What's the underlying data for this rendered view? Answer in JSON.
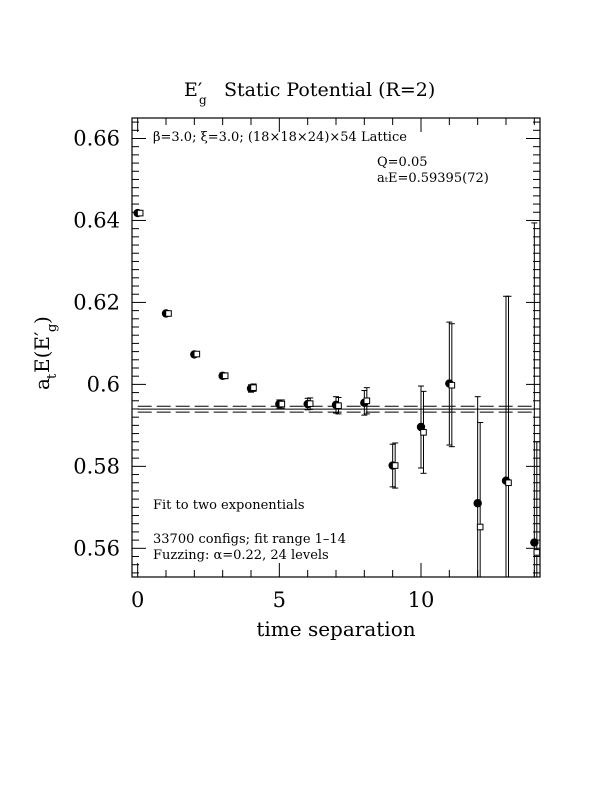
{
  "chart_data": {
    "type": "scatter",
    "title": "E′g  Static Potential (R=2)",
    "title_main": "E′",
    "title_sub": "g",
    "title_rest": "Static Potential (R=2)",
    "xlabel": "time separation",
    "ylabel": "aₜE(E′g)",
    "ylabel_parts": {
      "a": "a",
      "t": "t",
      "E": "E(E′",
      "g": "g",
      "close": ")"
    },
    "xlim": [
      -0.2,
      14.2
    ],
    "ylim": [
      0.553,
      0.665
    ],
    "x_ticks": [
      0,
      5,
      10
    ],
    "x_tick_labels": [
      "0",
      "5",
      "10"
    ],
    "y_ticks": [
      0.56,
      0.58,
      0.6,
      0.62,
      0.64,
      0.66
    ],
    "y_tick_labels": [
      "0.56",
      "0.58",
      "0.6",
      "0.62",
      "0.64",
      "0.66"
    ],
    "annotations": {
      "lattice": "β=3.0; ξ=3.0; (18×18×24)×54 Lattice",
      "q": "Q=0.05",
      "energy": "aₜE=0.59395(72)",
      "fit": "Fit to two exponentials",
      "configs": "33700 configs; fit range 1–14",
      "fuzzing": "Fuzzing: α=0.22, 24 levels"
    },
    "fit": {
      "value": 0.59395,
      "error": 0.00072,
      "x_range": [
        0,
        14
      ]
    },
    "series": [
      {
        "marker": "filled-circle",
        "x": [
          0,
          1,
          2,
          3,
          4,
          5,
          6,
          7,
          8,
          9,
          10,
          11,
          12,
          13,
          14
        ],
        "y": [
          0.6418,
          0.6173,
          0.6073,
          0.6021,
          0.599,
          0.5952,
          0.5952,
          0.595,
          0.5955,
          0.5802,
          0.5896,
          0.6002,
          0.571,
          0.5765,
          0.5614
        ],
        "err": [
          0.0005,
          0.0006,
          0.0006,
          0.0007,
          0.0009,
          0.001,
          0.0014,
          0.002,
          0.003,
          0.0052,
          0.01,
          0.015,
          0.026,
          0.045,
          0.078
        ]
      },
      {
        "marker": "open-square",
        "x": [
          0,
          1,
          2,
          3,
          4,
          5,
          6,
          7,
          8,
          9,
          10,
          11,
          12,
          13,
          14
        ],
        "y": [
          0.6418,
          0.6173,
          0.6074,
          0.6021,
          0.5992,
          0.5952,
          0.5953,
          0.5948,
          0.596,
          0.5802,
          0.5883,
          0.5998,
          0.5652,
          0.576,
          0.559
        ],
        "err": [
          0.0005,
          0.0006,
          0.0006,
          0.0007,
          0.0009,
          0.001,
          0.0014,
          0.002,
          0.0032,
          0.0055,
          0.01,
          0.015,
          0.0255,
          0.0455,
          0.027
        ]
      }
    ]
  }
}
